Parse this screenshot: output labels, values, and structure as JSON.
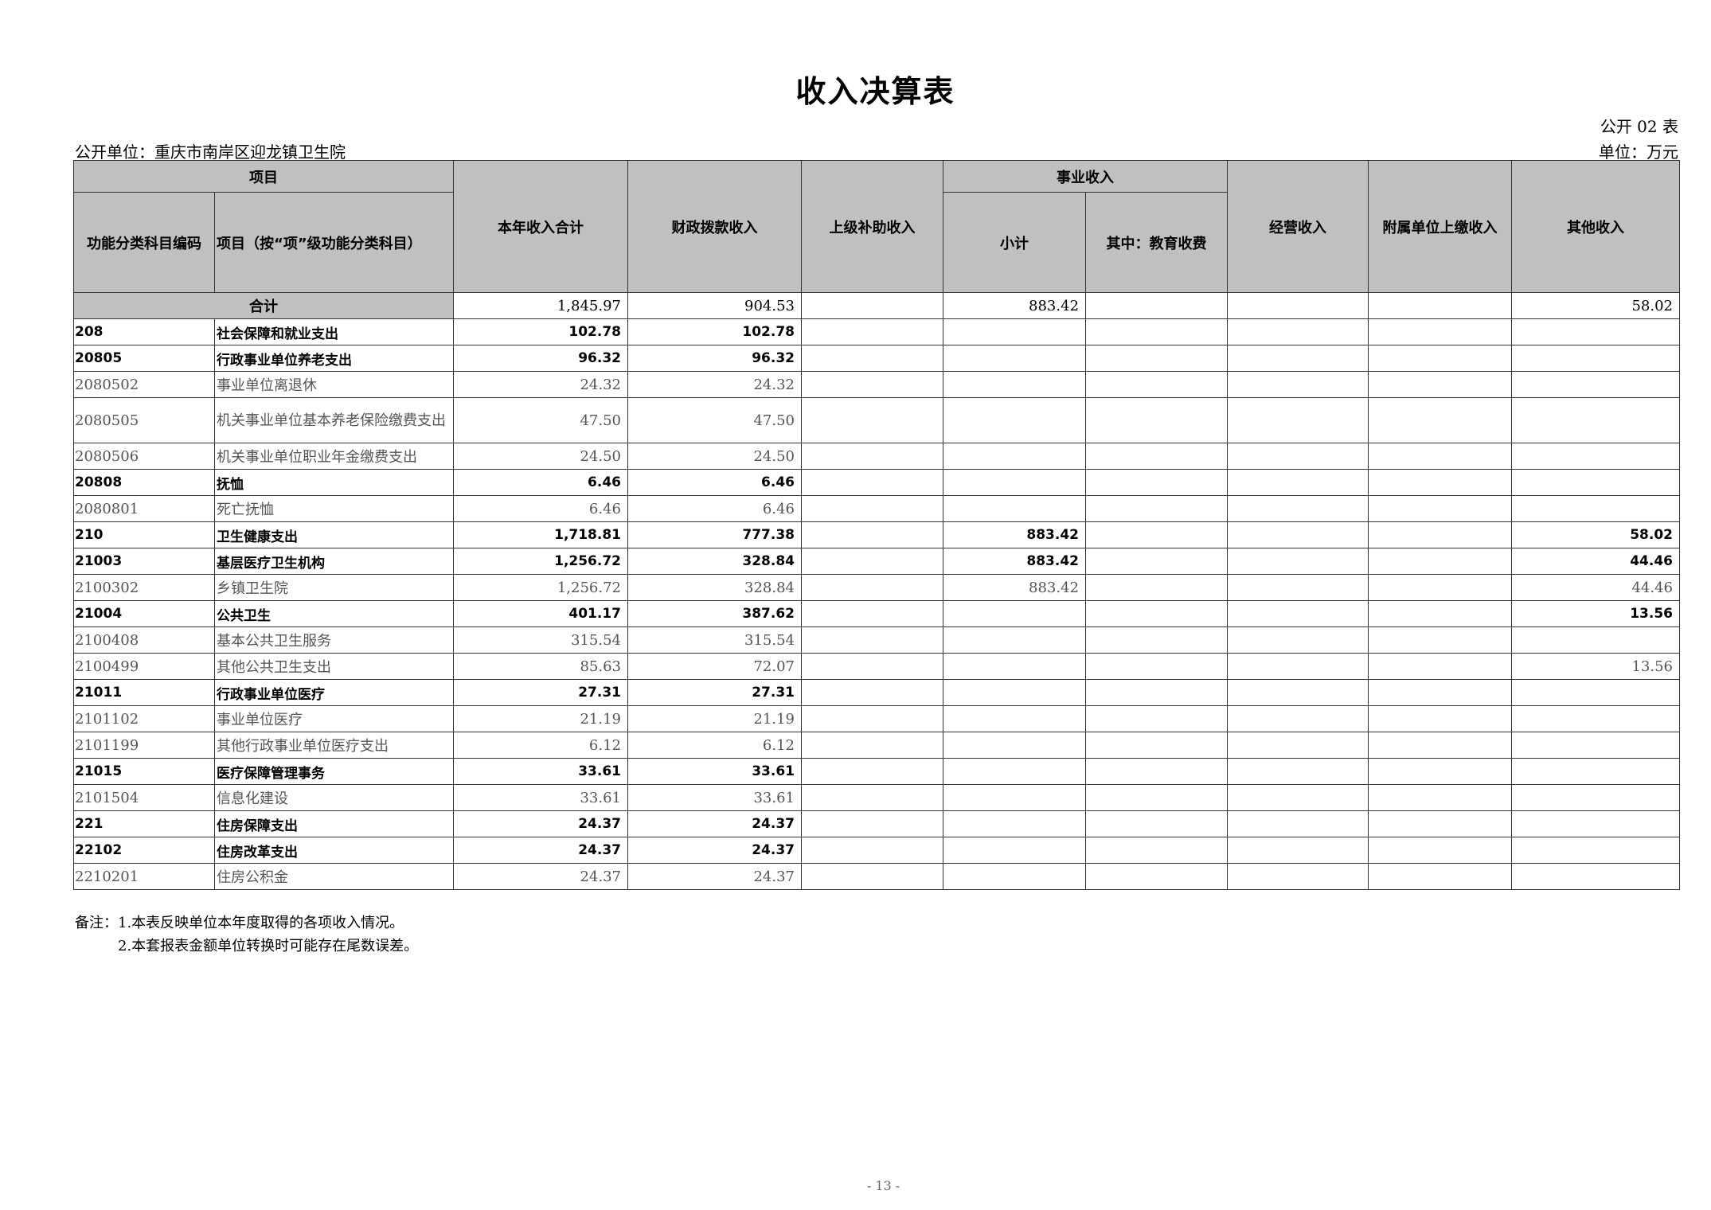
{
  "title": "收入决算表",
  "form_no": "公开 02 表",
  "unit_name": "公开单位：重庆市南岸区迎龙镇卫生院",
  "unit": "单位：万元",
  "headers": {
    "item_group": "项目",
    "code": "功能分类科目编码",
    "item": "项目（按“项”级功能分类科目）",
    "total": "本年收入合计",
    "fiscal": "财政拨款收入",
    "superior": "上级补助收入",
    "business_group": "事业收入",
    "subtotal": "小计",
    "education": "其中：教育收费",
    "operating": "经营收入",
    "affiliated": "附属单位上缴收入",
    "other": "其他收入"
  },
  "total_row": {
    "label": "合计",
    "total": "1,845.97",
    "fiscal": "904.53",
    "superior": "",
    "subtotal": "883.42",
    "education": "",
    "operating": "",
    "affiliated": "",
    "other": "58.02"
  },
  "rows": [
    {
      "level": "bold",
      "code": "208",
      "name": "社会保障和就业支出",
      "total": "102.78",
      "fiscal": "102.78",
      "superior": "",
      "subtotal": "",
      "education": "",
      "operating": "",
      "affiliated": "",
      "other": ""
    },
    {
      "level": "bold",
      "code": "20805",
      "name": "行政事业单位养老支出",
      "total": "96.32",
      "fiscal": "96.32",
      "superior": "",
      "subtotal": "",
      "education": "",
      "operating": "",
      "affiliated": "",
      "other": ""
    },
    {
      "level": "detail",
      "code": "2080502",
      "name": "事业单位离退休",
      "total": "24.32",
      "fiscal": "24.32",
      "superior": "",
      "subtotal": "",
      "education": "",
      "operating": "",
      "affiliated": "",
      "other": ""
    },
    {
      "level": "detail",
      "code": "2080505",
      "name": "机关事业单位基本养老保险缴费支出",
      "total": "47.50",
      "fiscal": "47.50",
      "superior": "",
      "subtotal": "",
      "education": "",
      "operating": "",
      "affiliated": "",
      "other": ""
    },
    {
      "level": "detail",
      "code": "2080506",
      "name": "机关事业单位职业年金缴费支出",
      "total": "24.50",
      "fiscal": "24.50",
      "superior": "",
      "subtotal": "",
      "education": "",
      "operating": "",
      "affiliated": "",
      "other": ""
    },
    {
      "level": "bold",
      "code": "20808",
      "name": "抚恤",
      "total": "6.46",
      "fiscal": "6.46",
      "superior": "",
      "subtotal": "",
      "education": "",
      "operating": "",
      "affiliated": "",
      "other": ""
    },
    {
      "level": "detail",
      "code": "2080801",
      "name": "死亡抚恤",
      "total": "6.46",
      "fiscal": "6.46",
      "superior": "",
      "subtotal": "",
      "education": "",
      "operating": "",
      "affiliated": "",
      "other": ""
    },
    {
      "level": "bold",
      "code": "210",
      "name": "卫生健康支出",
      "total": "1,718.81",
      "fiscal": "777.38",
      "superior": "",
      "subtotal": "883.42",
      "education": "",
      "operating": "",
      "affiliated": "",
      "other": "58.02"
    },
    {
      "level": "bold",
      "code": "21003",
      "name": "基层医疗卫生机构",
      "total": "1,256.72",
      "fiscal": "328.84",
      "superior": "",
      "subtotal": "883.42",
      "education": "",
      "operating": "",
      "affiliated": "",
      "other": "44.46"
    },
    {
      "level": "detail",
      "code": "2100302",
      "name": "乡镇卫生院",
      "total": "1,256.72",
      "fiscal": "328.84",
      "superior": "",
      "subtotal": "883.42",
      "education": "",
      "operating": "",
      "affiliated": "",
      "other": "44.46"
    },
    {
      "level": "bold",
      "code": "21004",
      "name": "公共卫生",
      "total": "401.17",
      "fiscal": "387.62",
      "superior": "",
      "subtotal": "",
      "education": "",
      "operating": "",
      "affiliated": "",
      "other": "13.56"
    },
    {
      "level": "detail",
      "code": "2100408",
      "name": "基本公共卫生服务",
      "total": "315.54",
      "fiscal": "315.54",
      "superior": "",
      "subtotal": "",
      "education": "",
      "operating": "",
      "affiliated": "",
      "other": ""
    },
    {
      "level": "detail",
      "code": "2100499",
      "name": "其他公共卫生支出",
      "total": "85.63",
      "fiscal": "72.07",
      "superior": "",
      "subtotal": "",
      "education": "",
      "operating": "",
      "affiliated": "",
      "other": "13.56"
    },
    {
      "level": "bold",
      "code": "21011",
      "name": "行政事业单位医疗",
      "total": "27.31",
      "fiscal": "27.31",
      "superior": "",
      "subtotal": "",
      "education": "",
      "operating": "",
      "affiliated": "",
      "other": ""
    },
    {
      "level": "detail",
      "code": "2101102",
      "name": "事业单位医疗",
      "total": "21.19",
      "fiscal": "21.19",
      "superior": "",
      "subtotal": "",
      "education": "",
      "operating": "",
      "affiliated": "",
      "other": ""
    },
    {
      "level": "detail",
      "code": "2101199",
      "name": "其他行政事业单位医疗支出",
      "total": "6.12",
      "fiscal": "6.12",
      "superior": "",
      "subtotal": "",
      "education": "",
      "operating": "",
      "affiliated": "",
      "other": ""
    },
    {
      "level": "bold",
      "code": "21015",
      "name": "医疗保障管理事务",
      "total": "33.61",
      "fiscal": "33.61",
      "superior": "",
      "subtotal": "",
      "education": "",
      "operating": "",
      "affiliated": "",
      "other": ""
    },
    {
      "level": "detail",
      "code": "2101504",
      "name": "信息化建设",
      "total": "33.61",
      "fiscal": "33.61",
      "superior": "",
      "subtotal": "",
      "education": "",
      "operating": "",
      "affiliated": "",
      "other": ""
    },
    {
      "level": "bold",
      "code": "221",
      "name": "住房保障支出",
      "total": "24.37",
      "fiscal": "24.37",
      "superior": "",
      "subtotal": "",
      "education": "",
      "operating": "",
      "affiliated": "",
      "other": ""
    },
    {
      "level": "bold",
      "code": "22102",
      "name": "住房改革支出",
      "total": "24.37",
      "fiscal": "24.37",
      "superior": "",
      "subtotal": "",
      "education": "",
      "operating": "",
      "affiliated": "",
      "other": ""
    },
    {
      "level": "detail",
      "code": "2210201",
      "name": "住房公积金",
      "total": "24.37",
      "fiscal": "24.37",
      "superior": "",
      "subtotal": "",
      "education": "",
      "operating": "",
      "affiliated": "",
      "other": ""
    }
  ],
  "notes": [
    "备注：1.本表反映单位本年度取得的各项收入情况。",
    "2.本套报表金额单位转换时可能存在尾数误差。"
  ],
  "page_number": "- 13 -"
}
